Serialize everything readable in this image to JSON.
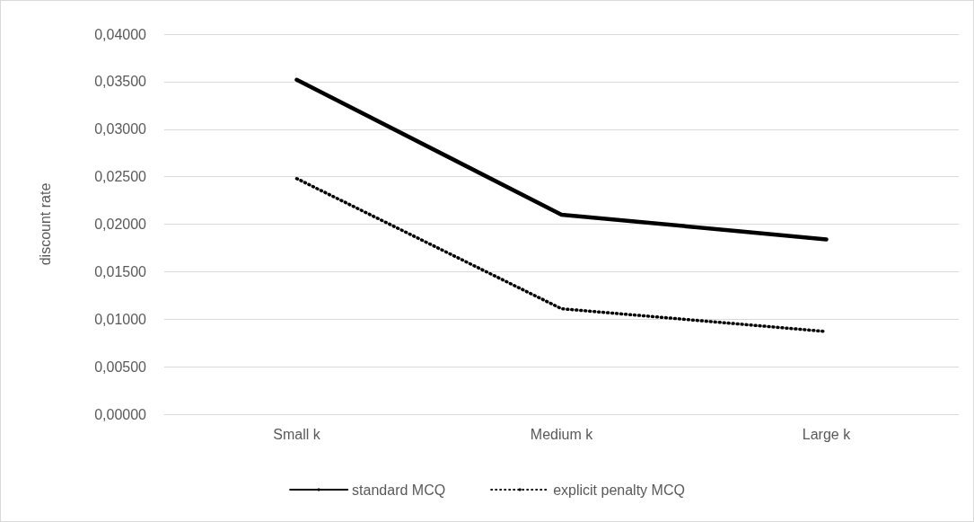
{
  "chart_data": {
    "type": "line",
    "ylabel": "discount rate",
    "categories": [
      "Small k",
      "Medium k",
      "Large k"
    ],
    "series": [
      {
        "name": "standard MCQ",
        "color": "#000000",
        "line_style": "solid",
        "values": [
          0.0352,
          0.021,
          0.0184
        ]
      },
      {
        "name": "explicit penalty MCQ",
        "color": "#000000",
        "line_style": "dotted",
        "values": [
          0.0248,
          0.0111,
          0.0087
        ]
      }
    ],
    "ylim": [
      0,
      0.04
    ],
    "yticks": [
      {
        "value": 0,
        "label": "0,00000"
      },
      {
        "value": 0.005,
        "label": "0,00500"
      },
      {
        "value": 0.01,
        "label": "0,01000"
      },
      {
        "value": 0.015,
        "label": "0,01500"
      },
      {
        "value": 0.02,
        "label": "0,02000"
      },
      {
        "value": 0.025,
        "label": "0,02500"
      },
      {
        "value": 0.03,
        "label": "0,03000"
      },
      {
        "value": 0.035,
        "label": "0,03500"
      },
      {
        "value": 0.04,
        "label": "0,04000"
      }
    ],
    "grid": "y",
    "legend": "bottom",
    "marker": "none"
  }
}
